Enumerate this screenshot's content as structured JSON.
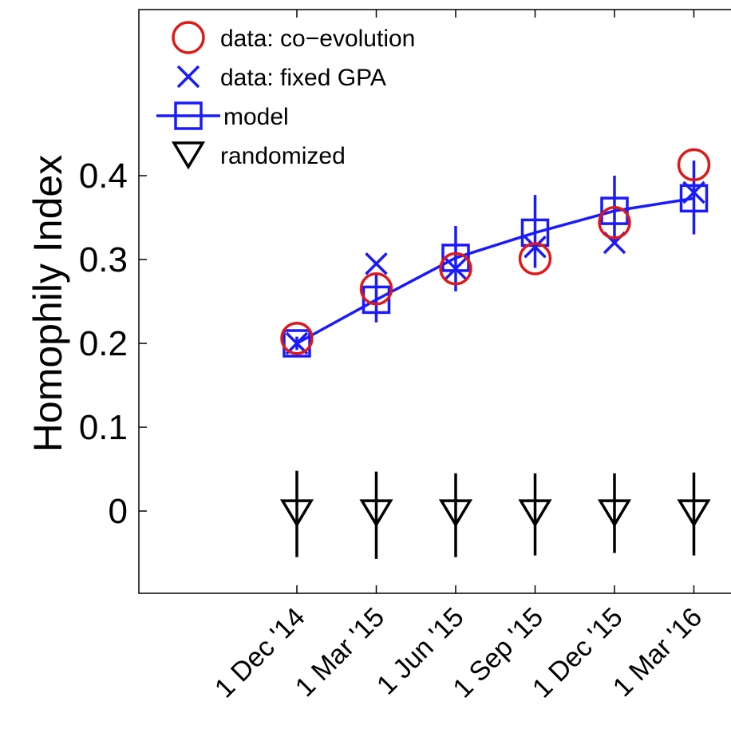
{
  "chart_data": {
    "type": "line",
    "ylabel": "Homophily Index",
    "xlabel": "",
    "categories": [
      "1 Dec '14",
      "1 Mar '15",
      "1 Jun '15",
      "1 Sep '15",
      "1 Dec '15",
      "1 Mar '16"
    ],
    "y_ticks": [
      0,
      0.1,
      0.2,
      0.3,
      0.4
    ],
    "y_tick_labels": [
      "0",
      "0.1",
      "0.2",
      "0.3",
      "0.4"
    ],
    "ylim": [
      -0.1,
      0.6
    ],
    "grid": false,
    "legend_position": "top-left",
    "series": [
      {
        "name": "data: co−evolution",
        "marker": "circle",
        "color": "#e01818",
        "values": [
          0.206,
          0.265,
          0.289,
          0.301,
          0.344,
          0.413
        ]
      },
      {
        "name": "data: fixed GPA",
        "marker": "x",
        "color": "#1a1aff",
        "values": [
          0.2,
          0.295,
          0.289,
          0.315,
          0.32,
          0.38
        ]
      },
      {
        "name": "model",
        "marker": "square",
        "line": true,
        "color": "#1a1aff",
        "values": [
          0.2,
          0.252,
          0.302,
          0.332,
          0.358,
          0.373
        ],
        "error_low": [
          0.192,
          0.225,
          0.262,
          0.29,
          0.32,
          0.33
        ],
        "error_high": [
          0.208,
          0.282,
          0.34,
          0.377,
          0.4,
          0.418
        ]
      },
      {
        "name": "randomized",
        "marker": "triangle-down",
        "color": "#000000",
        "values": [
          -0.002,
          -0.002,
          -0.002,
          -0.002,
          -0.002,
          -0.002
        ],
        "error_low": [
          -0.055,
          -0.057,
          -0.055,
          -0.053,
          -0.05,
          -0.053
        ],
        "error_high": [
          0.048,
          0.047,
          0.045,
          0.045,
          0.045,
          0.046
        ]
      }
    ]
  }
}
